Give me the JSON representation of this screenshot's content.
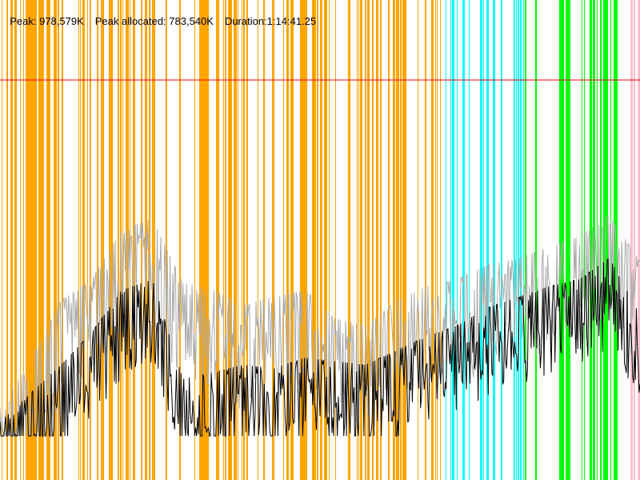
{
  "header": {
    "peak": "Peak: 978,579K",
    "peak_allocated": "Peak allocated: 783,540K",
    "duration": "Duration:1:14:41.25"
  },
  "colors": {
    "orange_phase": "#ffa500",
    "cyan_phase": "#00ffff",
    "green_phase": "#00ff00",
    "pink_phase": "#ffc0cb",
    "peak_line": "#ff0000",
    "total_series": "#aaaaaa",
    "allocated_series": "#000000"
  },
  "chart_data": {
    "type": "line",
    "x": "time (0 to 1:14:41.25)",
    "peak_marker_value": 978579,
    "phases": [
      {
        "name": "orange",
        "start": 0.0,
        "end": 0.69
      },
      {
        "name": "cyan",
        "start": 0.69,
        "end": 0.82
      },
      {
        "name": "green",
        "start": 0.82,
        "end": 0.965
      },
      {
        "name": "pink",
        "start": 0.965,
        "end": 1.0
      }
    ],
    "series": [
      {
        "values": [
          0.08,
          0.21,
          0.38,
          0.44,
          0.58,
          0.61,
          0.43,
          0.41,
          0.37,
          0.39,
          0.41,
          0.33,
          0.31,
          0.38,
          0.42,
          0.44,
          0.48,
          0.5,
          0.53,
          0.56,
          0.62,
          0.49
        ]
      },
      {
        "values": [
          0.04,
          0.12,
          0.2,
          0.29,
          0.41,
          0.44,
          0.16,
          0.18,
          0.2,
          0.19,
          0.22,
          0.21,
          0.2,
          0.24,
          0.28,
          0.31,
          0.36,
          0.39,
          0.42,
          0.44,
          0.5,
          0.34
        ]
      }
    ]
  }
}
